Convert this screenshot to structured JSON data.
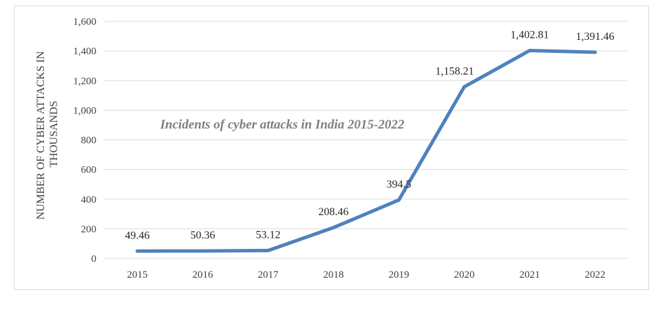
{
  "chart_data": {
    "type": "line",
    "title": "Incidents of cyber attacks in India 2015-2022",
    "ylabel_lines": [
      "NUMBER OF CYBER ATTACKS IN",
      "THOUSANDS"
    ],
    "xlabel": "",
    "categories": [
      "2015",
      "2016",
      "2017",
      "2018",
      "2019",
      "2020",
      "2021",
      "2022"
    ],
    "values": [
      49.46,
      50.36,
      53.12,
      208.46,
      394.5,
      1158.21,
      1402.81,
      1391.46
    ],
    "data_labels": [
      "49.46",
      "50.36",
      "53.12",
      "208.46",
      "394.5",
      "1,158.21",
      "1,402.81",
      "1,391.46"
    ],
    "ylim": [
      0,
      1600
    ],
    "yticks": [
      0,
      200,
      400,
      600,
      800,
      1000,
      1200,
      1400,
      1600
    ],
    "ytick_labels": [
      "0",
      "200",
      "400",
      "600",
      "800",
      "1,000",
      "1,200",
      "1,400",
      "1,600"
    ],
    "grid": true,
    "legend": "none",
    "line_color": "#4f81bd",
    "grid_color": "#d9d9d9"
  }
}
